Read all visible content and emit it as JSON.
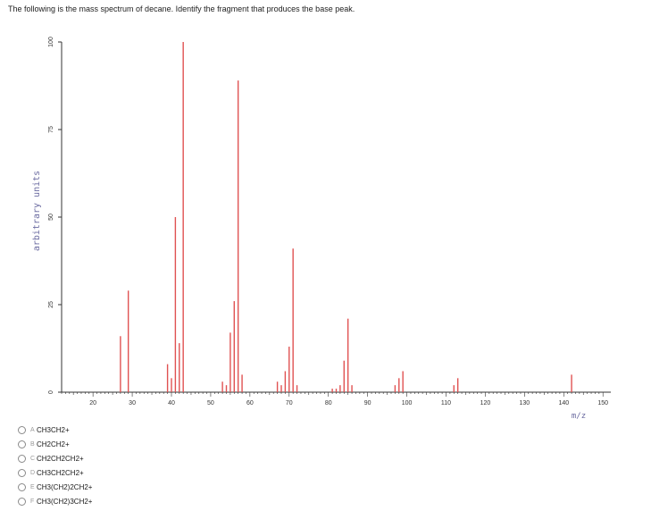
{
  "question": "The following is the mass spectrum of decane. Identify the fragment that produces the base peak.",
  "chart_data": {
    "type": "bar",
    "title": "",
    "xlabel": "m/z",
    "ylabel": "arbitrary units",
    "xlim": [
      12,
      152
    ],
    "ylim": [
      0,
      100
    ],
    "xticks": [
      20,
      30,
      40,
      50,
      60,
      70,
      80,
      90,
      100,
      110,
      120,
      130,
      140,
      150
    ],
    "yticks": [
      0,
      25,
      50,
      75,
      100
    ],
    "grid": false,
    "color": "#e05252",
    "x": [
      27,
      29,
      39,
      40,
      41,
      42,
      43,
      53,
      54,
      55,
      56,
      57,
      58,
      67,
      68,
      69,
      70,
      71,
      72,
      81,
      82,
      83,
      84,
      85,
      86,
      97,
      98,
      99,
      112,
      113,
      142
    ],
    "values": [
      16,
      29,
      8,
      4,
      50,
      14,
      100,
      3,
      2,
      17,
      26,
      89,
      5,
      3,
      2,
      6,
      13,
      41,
      2,
      1,
      1,
      2,
      9,
      21,
      2,
      2,
      4,
      6,
      2,
      4,
      5
    ]
  },
  "options": [
    {
      "letter": "A",
      "text": "CH3CH2+"
    },
    {
      "letter": "B",
      "text": "CH2CH2+"
    },
    {
      "letter": "C",
      "text": "CH2CH2CH2+"
    },
    {
      "letter": "D",
      "text": "CH3CH2CH2+"
    },
    {
      "letter": "E",
      "text": "CH3(CH2)2CH2+"
    },
    {
      "letter": "F",
      "text": "CH3(CH2)3CH2+"
    }
  ]
}
